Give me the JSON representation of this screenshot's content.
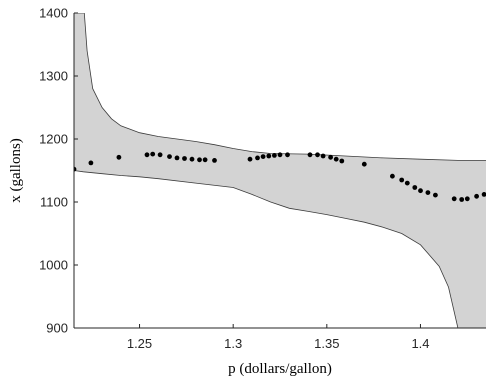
{
  "chart_data": {
    "type": "scatter",
    "title": "",
    "xlabel": "p (dollars/gallon)",
    "ylabel": "x (gallons)",
    "xlim": [
      1.215,
      1.435
    ],
    "ylim": [
      900,
      1400
    ],
    "grid": false,
    "x_ticks": [
      1.25,
      1.3,
      1.35,
      1.4
    ],
    "x_tick_labels": [
      "1.25",
      "1.3",
      "1.35",
      "1.4"
    ],
    "y_ticks": [
      900,
      1000,
      1100,
      1200,
      1300,
      1400
    ],
    "y_tick_labels": [
      "900",
      "1000",
      "1100",
      "1200",
      "1300",
      "1400"
    ],
    "colors": {
      "band": "#d3d3d3",
      "band_edge": "#3c3c3c",
      "points": "#000000",
      "axes": "#262626"
    },
    "band_upper": {
      "x": [
        1.215,
        1.2205,
        1.222,
        1.225,
        1.23,
        1.235,
        1.24,
        1.25,
        1.26,
        1.27,
        1.28,
        1.29,
        1.3,
        1.31,
        1.32,
        1.34,
        1.36,
        1.38,
        1.4,
        1.42,
        1.435
      ],
      "y": [
        1400,
        1400,
        1340,
        1280,
        1250,
        1232,
        1221,
        1210,
        1204,
        1200,
        1196,
        1191,
        1185,
        1180,
        1177,
        1176,
        1173,
        1170,
        1168,
        1166,
        1166
      ]
    },
    "band_lower": {
      "x": [
        1.215,
        1.22,
        1.23,
        1.24,
        1.25,
        1.26,
        1.28,
        1.3,
        1.31,
        1.32,
        1.33,
        1.34,
        1.35,
        1.36,
        1.37,
        1.38,
        1.39,
        1.4,
        1.41,
        1.415,
        1.42
      ],
      "y": [
        1150,
        1148,
        1145,
        1142,
        1140,
        1137,
        1130,
        1123,
        1112,
        1100,
        1090,
        1085,
        1080,
        1074,
        1068,
        1060,
        1050,
        1032,
        998,
        965,
        900
      ]
    },
    "points": {
      "x": [
        1.215,
        1.224,
        1.239,
        1.254,
        1.257,
        1.261,
        1.266,
        1.27,
        1.274,
        1.278,
        1.282,
        1.285,
        1.29,
        1.309,
        1.313,
        1.316,
        1.319,
        1.322,
        1.325,
        1.329,
        1.341,
        1.345,
        1.348,
        1.352,
        1.355,
        1.358,
        1.37,
        1.385,
        1.39,
        1.393,
        1.397,
        1.4,
        1.404,
        1.408,
        1.418,
        1.422,
        1.425,
        1.43,
        1.434
      ],
      "y": [
        1152,
        1162,
        1171,
        1175,
        1176,
        1175,
        1172,
        1170,
        1169,
        1168,
        1167,
        1167,
        1166,
        1168,
        1170,
        1172,
        1173,
        1174,
        1175,
        1175,
        1175,
        1175,
        1173,
        1171,
        1168,
        1165,
        1160,
        1141,
        1135,
        1130,
        1123,
        1118,
        1115,
        1111,
        1105,
        1104,
        1105,
        1109,
        1112
      ]
    }
  }
}
